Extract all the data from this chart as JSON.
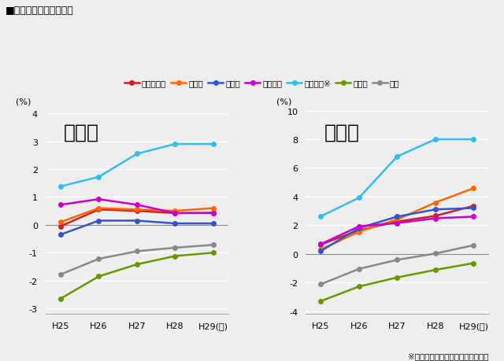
{
  "title": "■基準地価の変動率推移",
  "years": [
    "H25",
    "H26",
    "H27",
    "H28",
    "H29(年)"
  ],
  "legend_labels": [
    "三大都市圈",
    "東京圈",
    "大阪圈",
    "名古屋圈",
    "地方四市※",
    "地方圈",
    "全国"
  ],
  "colors": [
    "#cc2222",
    "#ff6600",
    "#3355cc",
    "#cc00cc",
    "#33bbee",
    "#669900",
    "#888888"
  ],
  "residential": {
    "三大都市圈": [
      -0.05,
      0.55,
      0.5,
      0.42,
      0.43
    ],
    "東京圈": [
      0.1,
      0.6,
      0.55,
      0.5,
      0.6
    ],
    "大阪圈": [
      -0.35,
      0.15,
      0.15,
      0.05,
      0.05
    ],
    "名古屋圈": [
      0.72,
      0.92,
      0.72,
      0.42,
      0.42
    ],
    "地方四市※": [
      1.38,
      1.72,
      2.55,
      2.9,
      2.9
    ],
    "地方圈": [
      -2.65,
      -1.85,
      -1.42,
      -1.12,
      -1.0
    ],
    "全国": [
      -1.78,
      -1.22,
      -0.95,
      -0.82,
      -0.72
    ]
  },
  "commercial": {
    "三大都市圈": [
      0.65,
      1.65,
      2.25,
      2.65,
      3.35
    ],
    "東京圈": [
      0.3,
      1.55,
      2.4,
      3.58,
      4.58
    ],
    "大阪圈": [
      0.2,
      1.8,
      2.6,
      3.1,
      3.2
    ],
    "名古屋圈": [
      0.68,
      1.92,
      2.15,
      2.48,
      2.6
    ],
    "地方四市※": [
      2.62,
      3.92,
      6.8,
      8.0,
      8.0
    ],
    "地方圈": [
      -3.3,
      -2.28,
      -1.65,
      -1.12,
      -0.65
    ],
    "全国": [
      -2.12,
      -1.05,
      -0.42,
      0.02,
      0.6
    ]
  },
  "residential_ylim": [
    -3.2,
    4.2
  ],
  "commercial_ylim": [
    -4.2,
    10.2
  ],
  "residential_yticks": [
    -3,
    -2,
    -1,
    0,
    1,
    2,
    3,
    4
  ],
  "commercial_yticks": [
    -4,
    -2,
    0,
    2,
    4,
    6,
    8,
    10
  ],
  "note": "※札幌市・仙台市・広島市・福岡市",
  "bg_color": "#eeeeee",
  "plot_bg": "#eeeeee",
  "subplot1_title": "住宅地",
  "subplot2_title": "商業地"
}
